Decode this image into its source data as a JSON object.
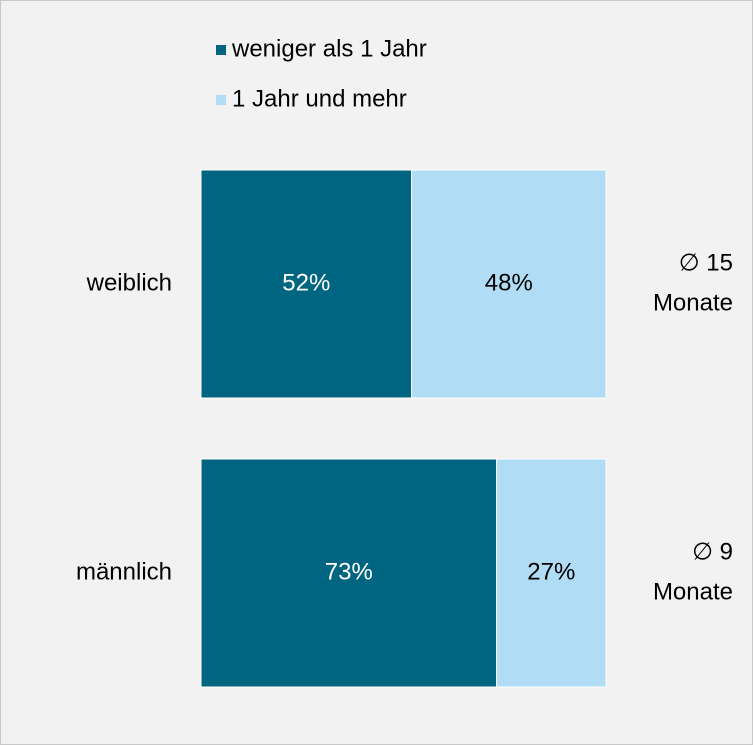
{
  "chart_data": {
    "type": "bar",
    "orientation": "horizontal",
    "stacked": true,
    "categories": [
      "weiblich",
      "männlich"
    ],
    "series": [
      {
        "name": "weniger als 1 Jahr",
        "color": "#006580",
        "values": [
          52,
          73
        ],
        "value_labels": [
          "52%",
          "73%"
        ]
      },
      {
        "name": "1 Jahr und mehr",
        "color": "#b0dcf5",
        "values": [
          48,
          27
        ],
        "value_labels": [
          "48%",
          "27%"
        ]
      }
    ],
    "annotations": [
      [
        "∅ 15",
        "Monate"
      ],
      [
        "∅ 9",
        "Monate"
      ]
    ],
    "xlim": [
      0,
      100
    ],
    "legend": "top"
  }
}
